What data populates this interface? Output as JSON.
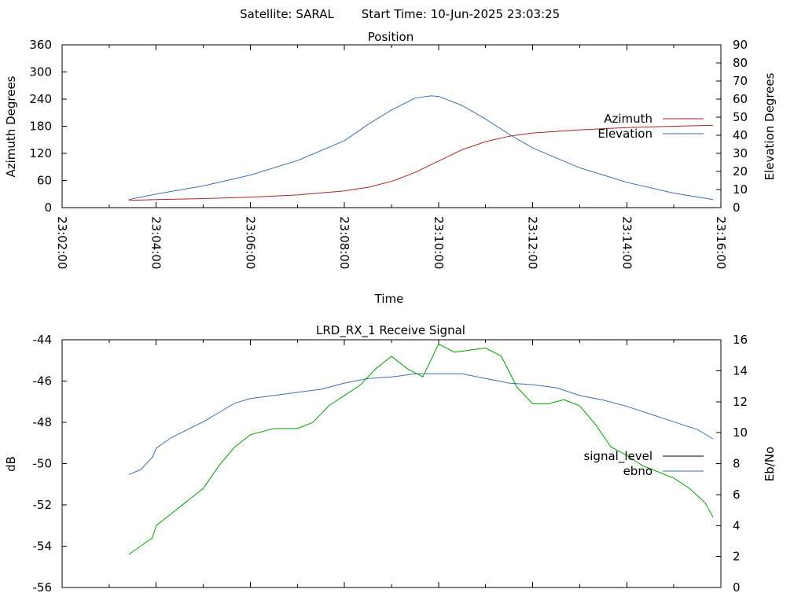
{
  "header": {
    "satellite_label": "Satellite: SARAL",
    "start_time_label": "Start Time: 10-Jun-2025 23:03:25"
  },
  "colors": {
    "azimuth": "#b22222",
    "elevation": "#3a6fb0",
    "signal_level": "#000000",
    "ebno_legend": "#3a6fb0",
    "ebno_trace": "#3a6fb0",
    "signal_trace": "#00a000"
  },
  "chart_data": [
    {
      "type": "line",
      "title": "Position",
      "xlabel": "Time",
      "ylabel": "Azimuth Degrees",
      "y2label": "Elevation Degrees",
      "xlim": [
        "23:02:00",
        "23:16:00"
      ],
      "ylim": [
        0,
        360
      ],
      "y2lim": [
        0,
        90
      ],
      "x_ticks": [
        "23:02:00",
        "23:04:00",
        "23:06:00",
        "23:08:00",
        "23:10:00",
        "23:12:00",
        "23:14:00",
        "23:16:00"
      ],
      "y_ticks": [
        "0",
        "60",
        "120",
        "180",
        "240",
        "300",
        "360"
      ],
      "y2_ticks": [
        "0",
        "10",
        "20",
        "30",
        "40",
        "50",
        "60",
        "70",
        "80",
        "90"
      ],
      "legend_position": "right",
      "grid": false,
      "series": [
        {
          "name": "Azimuth",
          "axis": "left",
          "x": [
            "23:03:25",
            "23:04:00",
            "23:05:00",
            "23:06:00",
            "23:07:00",
            "23:08:00",
            "23:08:30",
            "23:09:00",
            "23:09:30",
            "23:10:00",
            "23:10:30",
            "23:11:00",
            "23:11:30",
            "23:12:00",
            "23:13:00",
            "23:14:00",
            "23:15:00",
            "23:15:50"
          ],
          "values": [
            16,
            18,
            20,
            23,
            28,
            37,
            45,
            58,
            78,
            103,
            128,
            146,
            158,
            165,
            172,
            177,
            180,
            182
          ]
        },
        {
          "name": "Elevation",
          "axis": "right",
          "x": [
            "23:03:25",
            "23:04:00",
            "23:05:00",
            "23:06:00",
            "23:07:00",
            "23:08:00",
            "23:08:30",
            "23:09:00",
            "23:09:30",
            "23:09:50",
            "23:10:00",
            "23:10:30",
            "23:11:00",
            "23:11:30",
            "23:12:00",
            "23:13:00",
            "23:14:00",
            "23:15:00",
            "23:15:50"
          ],
          "values": [
            4.5,
            7.5,
            12,
            18,
            26,
            37,
            46,
            54,
            60.5,
            61.8,
            61.5,
            56.5,
            49,
            40.5,
            33,
            22,
            14,
            8,
            4.5
          ]
        }
      ]
    },
    {
      "type": "line",
      "title": "LRD_RX_1 Receive Signal",
      "ylabel": "dB",
      "y2label": "Eb/No",
      "xlim": [
        "23:02:00",
        "23:16:00"
      ],
      "ylim": [
        -56,
        -44
      ],
      "y2lim": [
        0,
        16
      ],
      "y_ticks": [
        "-56",
        "-54",
        "-52",
        "-50",
        "-48",
        "-46",
        "-44"
      ],
      "y2_ticks": [
        "0",
        "2",
        "4",
        "6",
        "8",
        "10",
        "12",
        "14",
        "16"
      ],
      "legend_position": "right",
      "grid": false,
      "series": [
        {
          "name": "signal_level",
          "axis": "left",
          "x": [
            "23:03:25",
            "23:03:40",
            "23:03:55",
            "23:04:00",
            "23:04:20",
            "23:04:40",
            "23:05:00",
            "23:05:20",
            "23:05:40",
            "23:06:00",
            "23:06:30",
            "23:07:00",
            "23:07:20",
            "23:07:40",
            "23:08:00",
            "23:08:20",
            "23:08:40",
            "23:09:00",
            "23:09:20",
            "23:09:40",
            "23:10:00",
            "23:10:20",
            "23:10:40",
            "23:11:00",
            "23:11:20",
            "23:11:40",
            "23:12:00",
            "23:12:20",
            "23:12:40",
            "23:13:00",
            "23:13:20",
            "23:13:40",
            "23:14:00",
            "23:14:20",
            "23:14:40",
            "23:15:00",
            "23:15:20",
            "23:15:40",
            "23:15:50"
          ],
          "values": [
            -54.4,
            -54.0,
            -53.6,
            -53.0,
            -52.4,
            -51.8,
            -51.2,
            -50.1,
            -49.2,
            -48.6,
            -48.3,
            -48.3,
            -48.0,
            -47.2,
            -46.7,
            -46.2,
            -45.4,
            -44.8,
            -45.4,
            -45.8,
            -44.2,
            -44.6,
            -44.5,
            -44.4,
            -44.8,
            -46.3,
            -47.1,
            -47.1,
            -46.9,
            -47.2,
            -48.1,
            -49.2,
            -49.6,
            -50.1,
            -50.4,
            -50.7,
            -51.2,
            -51.9,
            -52.6
          ]
        },
        {
          "name": "ebno",
          "axis": "right",
          "x": [
            "23:03:25",
            "23:03:40",
            "23:03:55",
            "23:04:00",
            "23:04:20",
            "23:04:40",
            "23:05:00",
            "23:05:20",
            "23:05:40",
            "23:06:00",
            "23:06:30",
            "23:07:00",
            "23:07:30",
            "23:08:00",
            "23:08:30",
            "23:09:00",
            "23:09:30",
            "23:10:00",
            "23:10:30",
            "23:11:00",
            "23:11:30",
            "23:12:00",
            "23:12:30",
            "23:13:00",
            "23:13:30",
            "23:14:00",
            "23:14:30",
            "23:15:00",
            "23:15:30",
            "23:15:50"
          ],
          "values": [
            7.3,
            7.6,
            8.4,
            9.0,
            9.7,
            10.2,
            10.7,
            11.3,
            11.9,
            12.2,
            12.4,
            12.6,
            12.8,
            13.2,
            13.5,
            13.6,
            13.8,
            13.8,
            13.8,
            13.5,
            13.2,
            13.1,
            12.9,
            12.4,
            12.1,
            11.7,
            11.2,
            10.7,
            10.2,
            9.6
          ]
        }
      ]
    }
  ]
}
